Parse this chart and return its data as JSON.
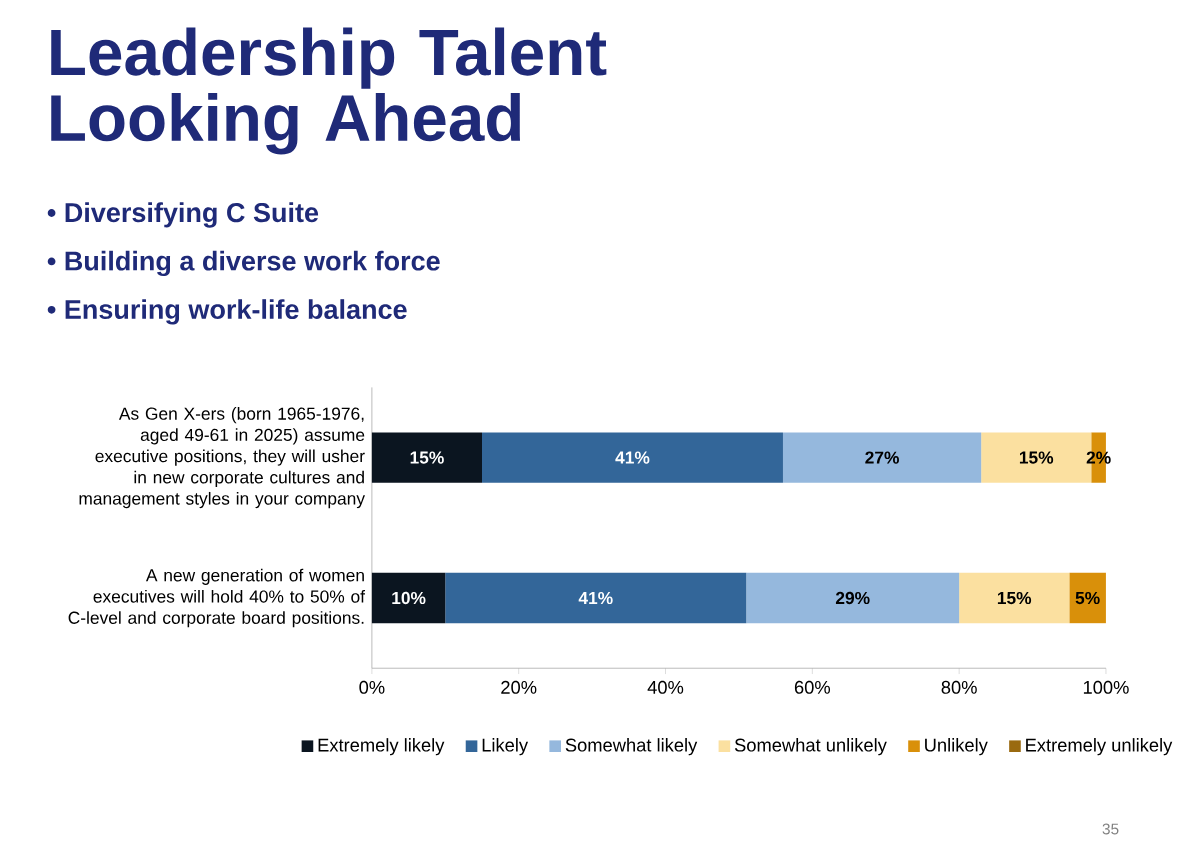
{
  "chart_data": {
    "type": "bar",
    "orientation": "horizontal",
    "stacked": true,
    "title": "Leadership Talent Looking Ahead",
    "annotations": [
      "• Diversifying C Suite",
      "• Building a diverse work force",
      "• Ensuring work-life balance",
      "35"
    ],
    "categories": [
      "As Gen X-ers (born 1965-1976, aged 49-61 in 2025) assume executive positions, they will usher in new corporate cultures and management styles in your company",
      "A new generation of women executives will hold 40% to 50% of C-level and corporate board positions."
    ],
    "series": [
      {
        "name": "Extremely likely",
        "color": "#0b1520",
        "values": [
          15,
          10
        ],
        "value_labels": [
          "15%",
          "10%"
        ]
      },
      {
        "name": "Likely",
        "color": "#336699",
        "values": [
          41,
          41
        ],
        "value_labels": [
          "41%",
          "41%"
        ]
      },
      {
        "name": "Somewhat likely",
        "color": "#95b8dd",
        "values": [
          27,
          29
        ],
        "value_labels": [
          "27%",
          "29%"
        ]
      },
      {
        "name": "Somewhat unlikely",
        "color": "#fbe0a0",
        "values": [
          15,
          15
        ],
        "value_labels": [
          "15%",
          "15%"
        ]
      },
      {
        "name": "Unlikely",
        "color": "#d9900a",
        "values": [
          2,
          5
        ],
        "value_labels": [
          "2%",
          "5%"
        ]
      },
      {
        "name": "Extremely unlikely",
        "color": "#9a6a10",
        "values": [
          0,
          0
        ],
        "value_labels": [
          null,
          null
        ]
      }
    ],
    "xlim": [
      0,
      100
    ],
    "xticks": [
      {
        "value": 0,
        "label": "0%"
      },
      {
        "value": 20,
        "label": "20%"
      },
      {
        "value": 40,
        "label": "40%"
      },
      {
        "value": 60,
        "label": "60%"
      },
      {
        "value": 80,
        "label": "80%"
      },
      {
        "value": 100,
        "label": "100%"
      }
    ],
    "grid": false,
    "legend": "bottom"
  }
}
